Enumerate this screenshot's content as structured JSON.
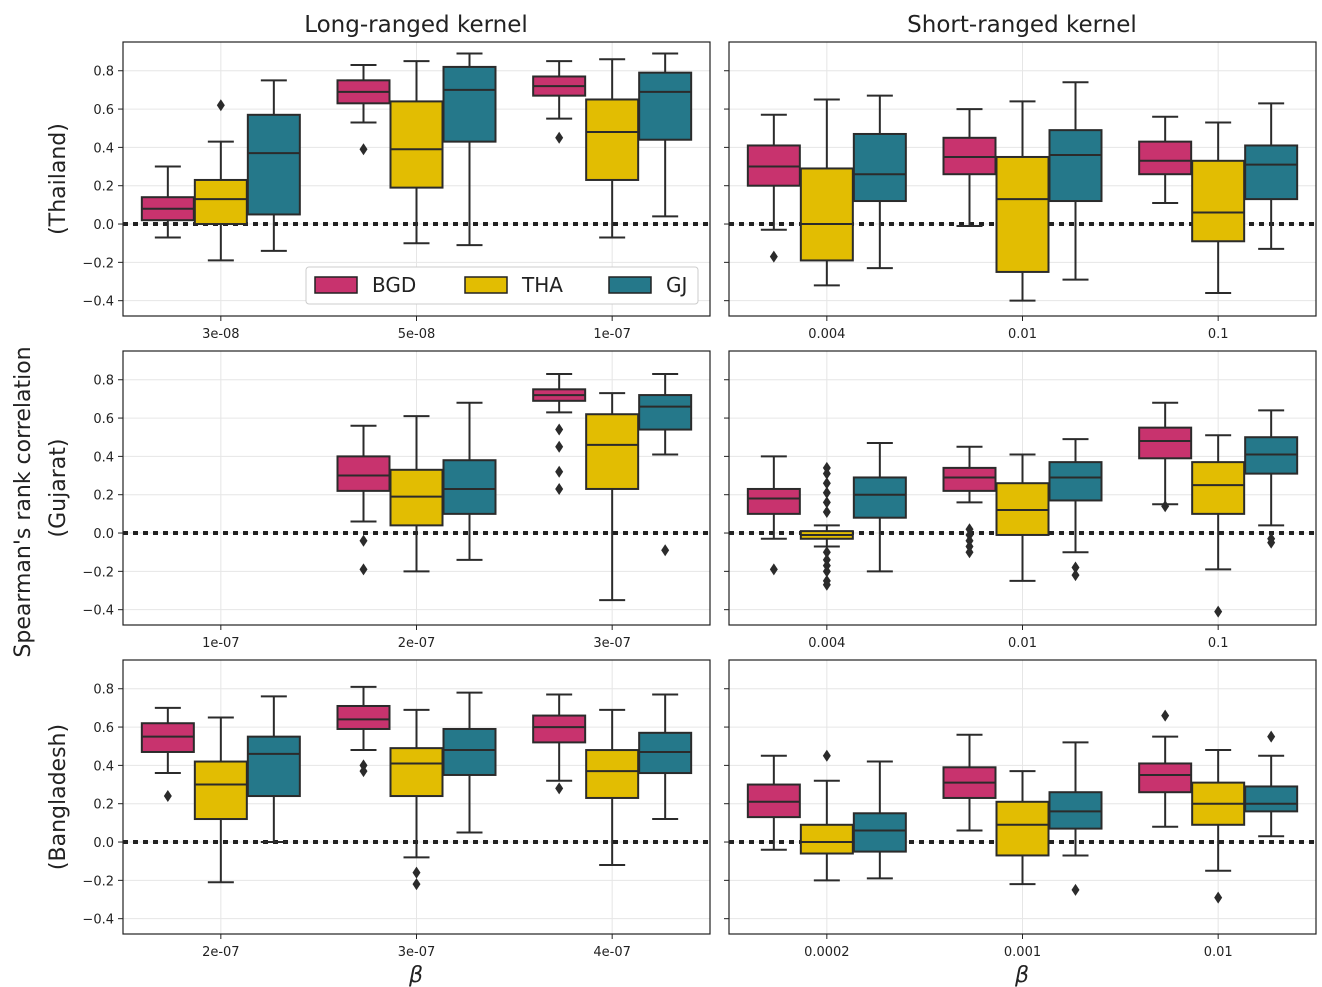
{
  "colors": {
    "BGD": "#c8336e",
    "THA": "#e2bd02",
    "GJ": "#25788a"
  },
  "col_titles": [
    "Long-ranged kernel",
    "Short-ranged kernel"
  ],
  "row_labels": [
    "(Thailand)",
    "(Gujarat)",
    "(Bangladesh)"
  ],
  "shared_ylabel": "Spearman's rank correlation",
  "xlabel": "β",
  "legend": [
    "BGD",
    "THA",
    "GJ"
  ],
  "chart_data": {
    "type": "box",
    "series_names": [
      "BGD",
      "THA",
      "GJ"
    ],
    "ylim": [
      -0.48,
      0.95
    ],
    "yticks": [
      -0.4,
      -0.2,
      0.0,
      0.2,
      0.4,
      0.6,
      0.8
    ],
    "ytick_labels": [
      "−0.4",
      "−0.2",
      "0.0",
      "0.2",
      "0.4",
      "0.6",
      "0.8"
    ],
    "reference_line": 0.0,
    "grid": true,
    "legend_position": "lower-right",
    "panels": [
      {
        "row": "(Thailand)",
        "kernel": "Long-ranged kernel",
        "categories": [
          "3e-08",
          "5e-08",
          "1e-07"
        ],
        "groups": [
          [
            {
              "series": "BGD",
              "whislo": -0.07,
              "q1": 0.02,
              "med": 0.08,
              "q3": 0.14,
              "whishi": 0.3,
              "fliers": []
            },
            {
              "series": "THA",
              "whislo": -0.19,
              "q1": 0.0,
              "med": 0.13,
              "q3": 0.23,
              "whishi": 0.43,
              "fliers": [
                0.62
              ]
            },
            {
              "series": "GJ",
              "whislo": -0.14,
              "q1": 0.05,
              "med": 0.37,
              "q3": 0.57,
              "whishi": 0.75,
              "fliers": []
            }
          ],
          [
            {
              "series": "BGD",
              "whislo": 0.53,
              "q1": 0.63,
              "med": 0.69,
              "q3": 0.75,
              "whishi": 0.83,
              "fliers": [
                0.39
              ]
            },
            {
              "series": "THA",
              "whislo": -0.1,
              "q1": 0.19,
              "med": 0.39,
              "q3": 0.64,
              "whishi": 0.85,
              "fliers": []
            },
            {
              "series": "GJ",
              "whislo": -0.11,
              "q1": 0.43,
              "med": 0.7,
              "q3": 0.82,
              "whishi": 0.89,
              "fliers": []
            }
          ],
          [
            {
              "series": "BGD",
              "whislo": 0.55,
              "q1": 0.67,
              "med": 0.72,
              "q3": 0.77,
              "whishi": 0.85,
              "fliers": [
                0.45
              ]
            },
            {
              "series": "THA",
              "whislo": -0.07,
              "q1": 0.23,
              "med": 0.48,
              "q3": 0.65,
              "whishi": 0.86,
              "fliers": []
            },
            {
              "series": "GJ",
              "whislo": 0.04,
              "q1": 0.44,
              "med": 0.69,
              "q3": 0.79,
              "whishi": 0.89,
              "fliers": []
            }
          ]
        ]
      },
      {
        "row": "(Thailand)",
        "kernel": "Short-ranged kernel",
        "categories": [
          "0.004",
          "0.01",
          "0.1"
        ],
        "groups": [
          [
            {
              "series": "BGD",
              "whislo": -0.03,
              "q1": 0.2,
              "med": 0.3,
              "q3": 0.41,
              "whishi": 0.57,
              "fliers": [
                -0.17
              ]
            },
            {
              "series": "THA",
              "whislo": -0.32,
              "q1": -0.19,
              "med": 0.0,
              "q3": 0.29,
              "whishi": 0.65,
              "fliers": []
            },
            {
              "series": "GJ",
              "whislo": -0.23,
              "q1": 0.12,
              "med": 0.26,
              "q3": 0.47,
              "whishi": 0.67,
              "fliers": []
            }
          ],
          [
            {
              "series": "BGD",
              "whislo": -0.01,
              "q1": 0.26,
              "med": 0.35,
              "q3": 0.45,
              "whishi": 0.6,
              "fliers": []
            },
            {
              "series": "THA",
              "whislo": -0.4,
              "q1": -0.25,
              "med": 0.13,
              "q3": 0.35,
              "whishi": 0.64,
              "fliers": []
            },
            {
              "series": "GJ",
              "whislo": -0.29,
              "q1": 0.12,
              "med": 0.36,
              "q3": 0.49,
              "whishi": 0.74,
              "fliers": []
            }
          ],
          [
            {
              "series": "BGD",
              "whislo": 0.11,
              "q1": 0.26,
              "med": 0.33,
              "q3": 0.43,
              "whishi": 0.56,
              "fliers": []
            },
            {
              "series": "THA",
              "whislo": -0.36,
              "q1": -0.09,
              "med": 0.06,
              "q3": 0.33,
              "whishi": 0.53,
              "fliers": []
            },
            {
              "series": "GJ",
              "whislo": -0.13,
              "q1": 0.13,
              "med": 0.31,
              "q3": 0.41,
              "whishi": 0.63,
              "fliers": []
            }
          ]
        ]
      },
      {
        "row": "(Gujarat)",
        "kernel": "Long-ranged kernel",
        "categories": [
          "1e-07",
          "2e-07",
          "3e-07"
        ],
        "groups": [
          [],
          [
            {
              "series": "BGD",
              "whislo": 0.06,
              "q1": 0.22,
              "med": 0.3,
              "q3": 0.4,
              "whishi": 0.56,
              "fliers": [
                -0.04,
                -0.19
              ]
            },
            {
              "series": "THA",
              "whislo": -0.2,
              "q1": 0.04,
              "med": 0.19,
              "q3": 0.33,
              "whishi": 0.61,
              "fliers": []
            },
            {
              "series": "GJ",
              "whislo": -0.14,
              "q1": 0.1,
              "med": 0.23,
              "q3": 0.38,
              "whishi": 0.68,
              "fliers": []
            }
          ],
          [
            {
              "series": "BGD",
              "whislo": 0.63,
              "q1": 0.69,
              "med": 0.72,
              "q3": 0.75,
              "whishi": 0.83,
              "fliers": [
                0.54,
                0.45,
                0.32,
                0.23
              ]
            },
            {
              "series": "THA",
              "whislo": -0.35,
              "q1": 0.23,
              "med": 0.46,
              "q3": 0.62,
              "whishi": 0.73,
              "fliers": []
            },
            {
              "series": "GJ",
              "whislo": 0.41,
              "q1": 0.54,
              "med": 0.66,
              "q3": 0.72,
              "whishi": 0.83,
              "fliers": [
                -0.09
              ]
            }
          ]
        ]
      },
      {
        "row": "(Gujarat)",
        "kernel": "Short-ranged kernel",
        "categories": [
          "0.004",
          "0.01",
          "0.1"
        ],
        "groups": [
          [
            {
              "series": "BGD",
              "whislo": -0.03,
              "q1": 0.1,
              "med": 0.18,
              "q3": 0.23,
              "whishi": 0.4,
              "fliers": [
                -0.19
              ]
            },
            {
              "series": "THA",
              "whislo": -0.07,
              "q1": -0.03,
              "med": -0.01,
              "q3": 0.01,
              "whishi": 0.04,
              "fliers": [
                0.34,
                0.31,
                0.26,
                0.21,
                0.16,
                0.11,
                -0.1,
                -0.14,
                -0.17,
                -0.2,
                -0.25,
                -0.27
              ]
            },
            {
              "series": "GJ",
              "whislo": -0.2,
              "q1": 0.08,
              "med": 0.2,
              "q3": 0.29,
              "whishi": 0.47,
              "fliers": []
            }
          ],
          [
            {
              "series": "BGD",
              "whislo": 0.16,
              "q1": 0.22,
              "med": 0.29,
              "q3": 0.34,
              "whishi": 0.45,
              "fliers": [
                0.02,
                -0.01,
                -0.04,
                -0.07,
                -0.1
              ]
            },
            {
              "series": "THA",
              "whislo": -0.25,
              "q1": -0.01,
              "med": 0.12,
              "q3": 0.26,
              "whishi": 0.41,
              "fliers": []
            },
            {
              "series": "GJ",
              "whislo": -0.1,
              "q1": 0.17,
              "med": 0.29,
              "q3": 0.37,
              "whishi": 0.49,
              "fliers": [
                -0.18,
                -0.22
              ]
            }
          ],
          [
            {
              "series": "BGD",
              "whislo": 0.15,
              "q1": 0.39,
              "med": 0.48,
              "q3": 0.55,
              "whishi": 0.68,
              "fliers": [
                0.14
              ]
            },
            {
              "series": "THA",
              "whislo": -0.19,
              "q1": 0.1,
              "med": 0.25,
              "q3": 0.37,
              "whishi": 0.51,
              "fliers": [
                -0.41
              ]
            },
            {
              "series": "GJ",
              "whislo": 0.04,
              "q1": 0.31,
              "med": 0.41,
              "q3": 0.5,
              "whishi": 0.64,
              "fliers": [
                -0.03,
                -0.05
              ]
            }
          ]
        ]
      },
      {
        "row": "(Bangladesh)",
        "kernel": "Long-ranged kernel",
        "categories": [
          "2e-07",
          "3e-07",
          "4e-07"
        ],
        "groups": [
          [
            {
              "series": "BGD",
              "whislo": 0.36,
              "q1": 0.47,
              "med": 0.55,
              "q3": 0.62,
              "whishi": 0.7,
              "fliers": [
                0.24
              ]
            },
            {
              "series": "THA",
              "whislo": -0.21,
              "q1": 0.12,
              "med": 0.3,
              "q3": 0.42,
              "whishi": 0.65,
              "fliers": []
            },
            {
              "series": "GJ",
              "whislo": 0.0,
              "q1": 0.24,
              "med": 0.46,
              "q3": 0.55,
              "whishi": 0.76,
              "fliers": []
            }
          ],
          [
            {
              "series": "BGD",
              "whislo": 0.48,
              "q1": 0.59,
              "med": 0.64,
              "q3": 0.71,
              "whishi": 0.81,
              "fliers": [
                0.4,
                0.37
              ]
            },
            {
              "series": "THA",
              "whislo": -0.08,
              "q1": 0.24,
              "med": 0.41,
              "q3": 0.49,
              "whishi": 0.69,
              "fliers": [
                -0.16,
                -0.22
              ]
            },
            {
              "series": "GJ",
              "whislo": 0.05,
              "q1": 0.35,
              "med": 0.48,
              "q3": 0.59,
              "whishi": 0.78,
              "fliers": []
            }
          ],
          [
            {
              "series": "BGD",
              "whislo": 0.32,
              "q1": 0.52,
              "med": 0.6,
              "q3": 0.66,
              "whishi": 0.77,
              "fliers": [
                0.28
              ]
            },
            {
              "series": "THA",
              "whislo": -0.12,
              "q1": 0.23,
              "med": 0.37,
              "q3": 0.48,
              "whishi": 0.69,
              "fliers": []
            },
            {
              "series": "GJ",
              "whislo": 0.12,
              "q1": 0.36,
              "med": 0.47,
              "q3": 0.57,
              "whishi": 0.77,
              "fliers": []
            }
          ]
        ]
      },
      {
        "row": "(Bangladesh)",
        "kernel": "Short-ranged kernel",
        "categories": [
          "0.0002",
          "0.001",
          "0.01"
        ],
        "groups": [
          [
            {
              "series": "BGD",
              "whislo": -0.04,
              "q1": 0.13,
              "med": 0.21,
              "q3": 0.3,
              "whishi": 0.45,
              "fliers": []
            },
            {
              "series": "THA",
              "whislo": -0.2,
              "q1": -0.06,
              "med": 0.0,
              "q3": 0.09,
              "whishi": 0.32,
              "fliers": [
                0.45
              ]
            },
            {
              "series": "GJ",
              "whislo": -0.19,
              "q1": -0.05,
              "med": 0.06,
              "q3": 0.15,
              "whishi": 0.42,
              "fliers": []
            }
          ],
          [
            {
              "series": "BGD",
              "whislo": 0.06,
              "q1": 0.23,
              "med": 0.31,
              "q3": 0.39,
              "whishi": 0.56,
              "fliers": []
            },
            {
              "series": "THA",
              "whislo": -0.22,
              "q1": -0.07,
              "med": 0.09,
              "q3": 0.21,
              "whishi": 0.37,
              "fliers": []
            },
            {
              "series": "GJ",
              "whislo": -0.07,
              "q1": 0.07,
              "med": 0.16,
              "q3": 0.26,
              "whishi": 0.52,
              "fliers": [
                -0.25
              ]
            }
          ],
          [
            {
              "series": "BGD",
              "whislo": 0.08,
              "q1": 0.26,
              "med": 0.35,
              "q3": 0.41,
              "whishi": 0.55,
              "fliers": [
                0.66
              ]
            },
            {
              "series": "THA",
              "whislo": -0.15,
              "q1": 0.09,
              "med": 0.2,
              "q3": 0.31,
              "whishi": 0.48,
              "fliers": [
                -0.29
              ]
            },
            {
              "series": "GJ",
              "whislo": 0.03,
              "q1": 0.16,
              "med": 0.2,
              "q3": 0.29,
              "whishi": 0.45,
              "fliers": [
                0.55
              ]
            }
          ]
        ]
      }
    ]
  }
}
